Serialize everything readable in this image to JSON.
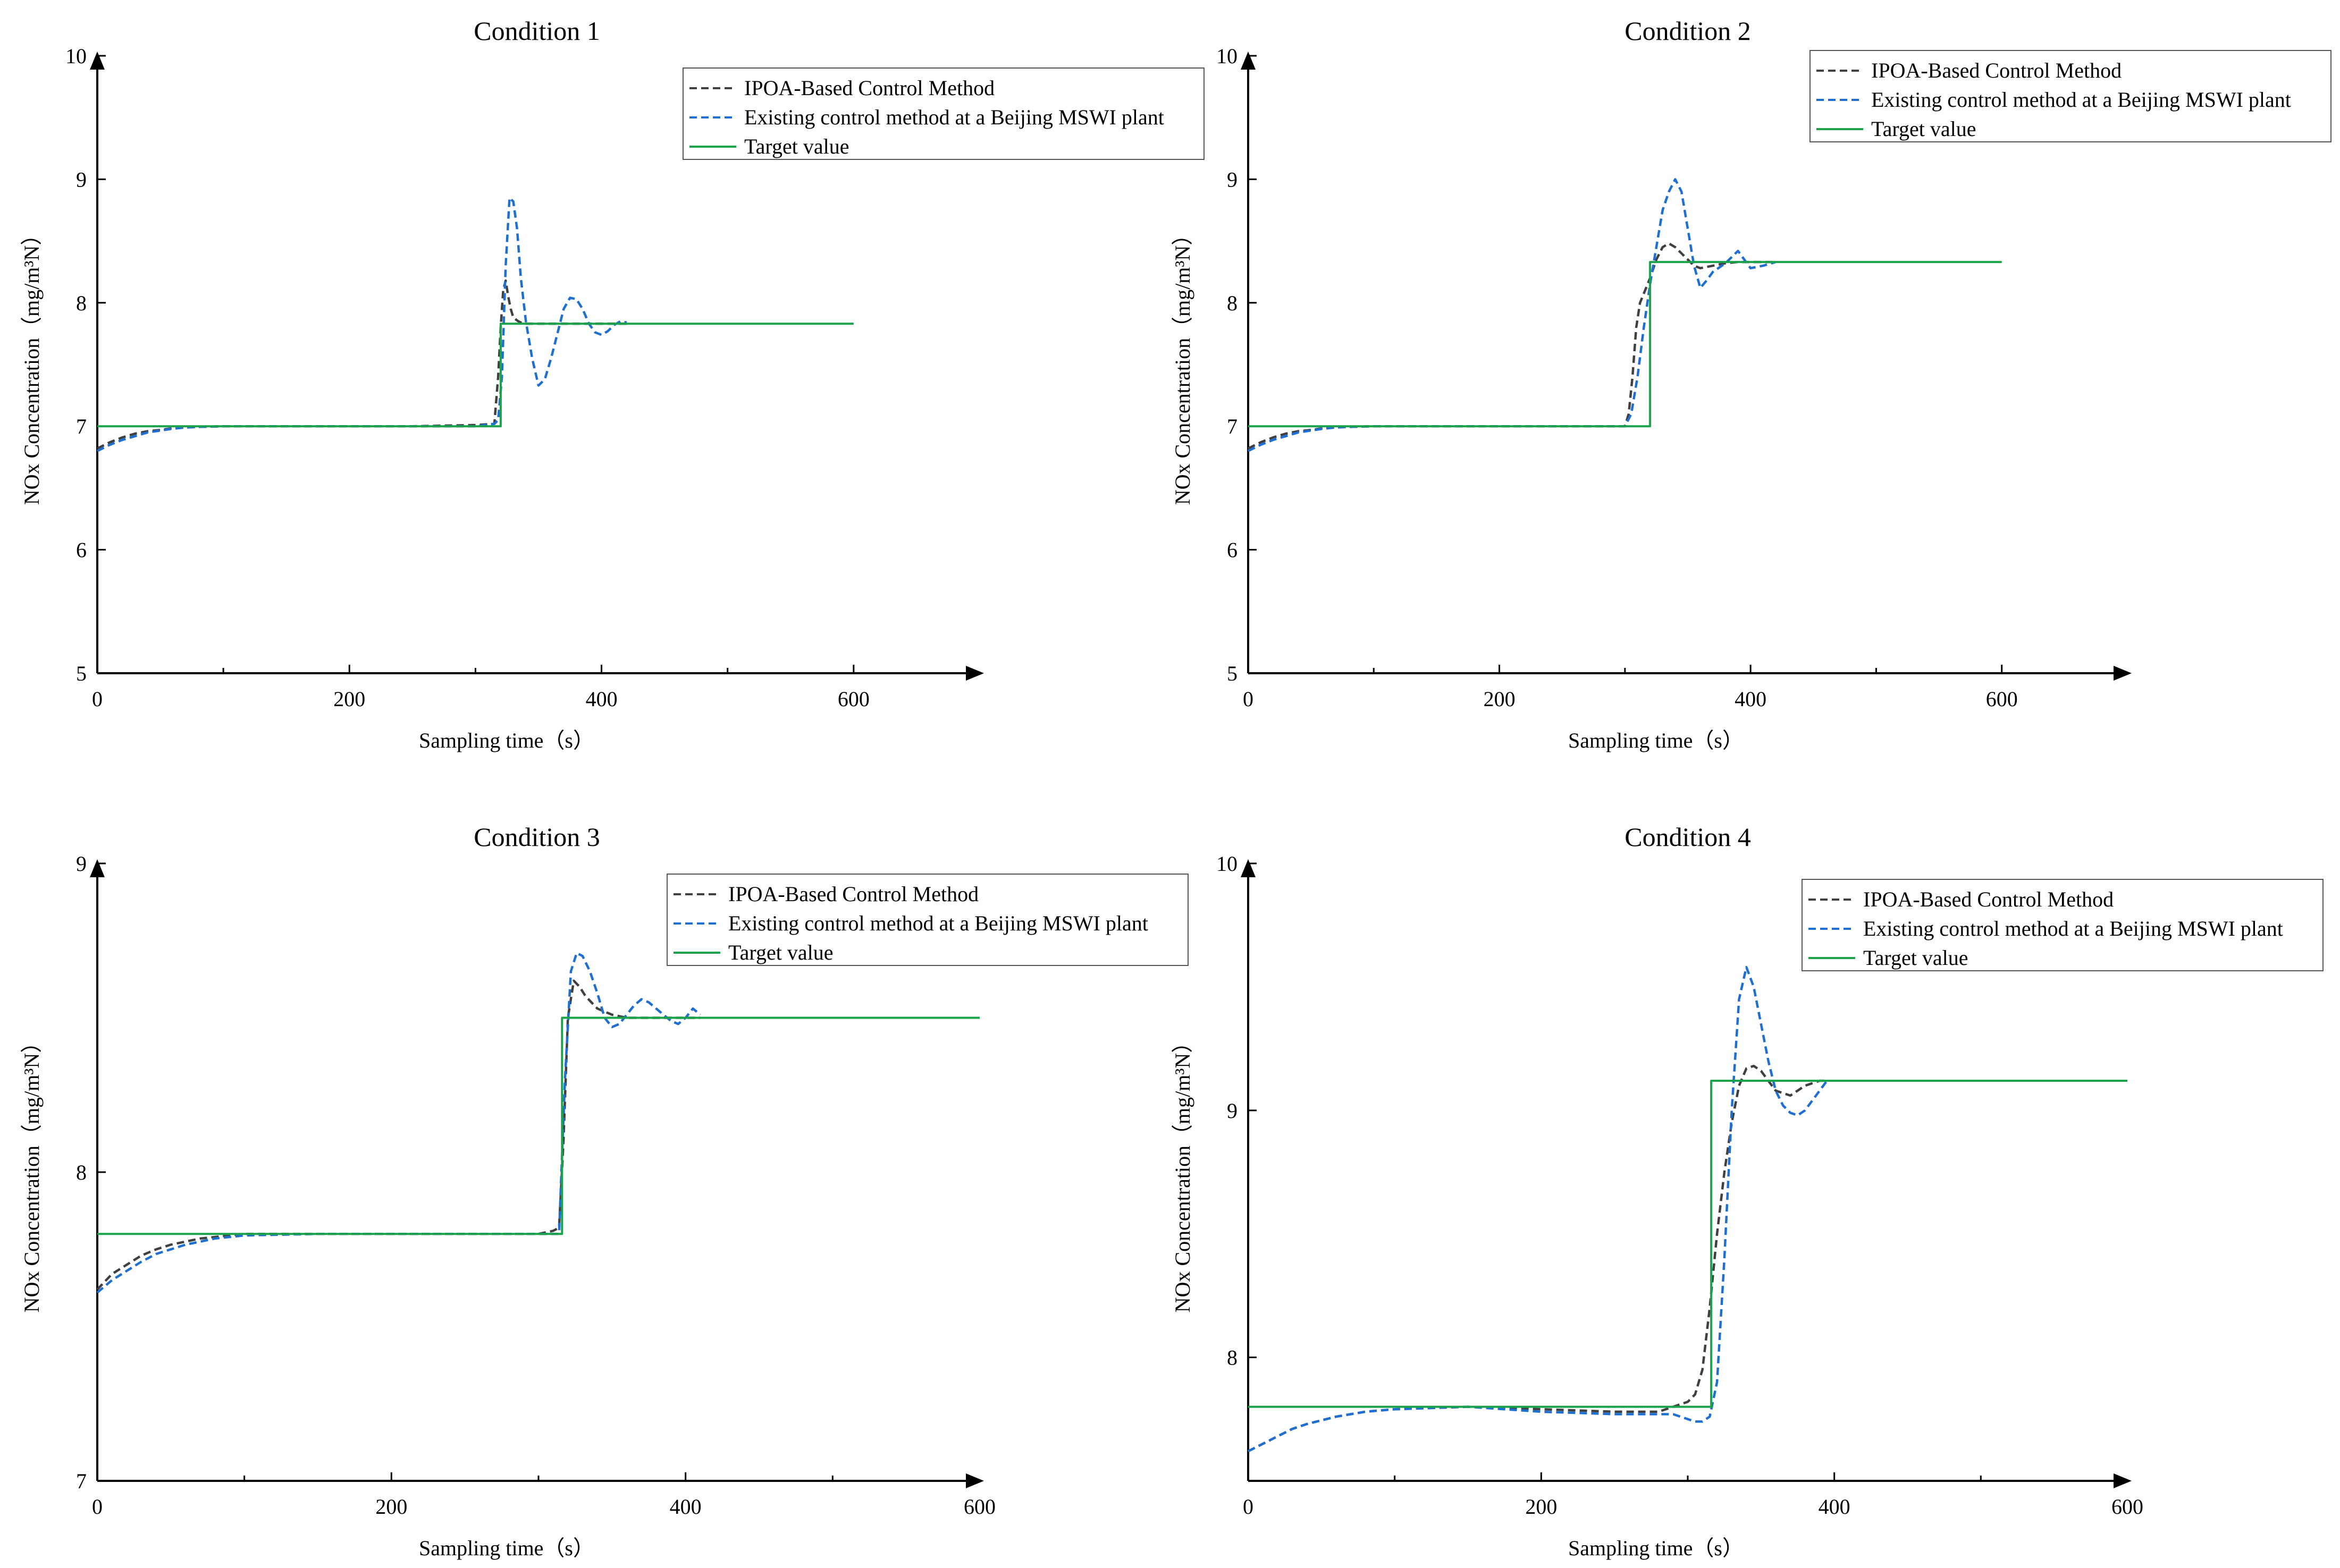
{
  "figure": {
    "legend_labels": [
      "IPOA-Based Control Method",
      "Existing control method at a Beijing MSWI plant",
      "Target value"
    ]
  },
  "chart_data": [
    {
      "type": "line",
      "title": "Condition 1",
      "xlabel": "Sampling time（s）",
      "ylabel": "NOx Concentration（mg/m³N）",
      "xlim": [
        0,
        700
      ],
      "ylim": [
        5,
        10
      ],
      "xticks": [
        0,
        200,
        400,
        600
      ],
      "yticks": [
        5,
        6,
        7,
        8,
        9,
        10
      ],
      "legend_position": "top-right",
      "series": [
        {
          "name": "IPOA-Based Control Method",
          "color": "#404040",
          "dash": "dashed",
          "x": [
            0,
            10,
            20,
            30,
            40,
            50,
            60,
            70,
            80,
            100,
            150,
            200,
            250,
            300,
            315,
            318,
            320,
            322,
            324,
            326,
            328,
            330,
            334,
            338,
            342,
            350,
            360,
            400,
            420
          ],
          "y": [
            6.82,
            6.87,
            6.91,
            6.94,
            6.96,
            6.97,
            6.985,
            6.99,
            6.995,
            7.0,
            7.0,
            7.0,
            7.0,
            7.01,
            7.02,
            7.4,
            7.8,
            8.1,
            8.18,
            8.05,
            7.95,
            7.88,
            7.85,
            7.83,
            7.83,
            7.83,
            7.83,
            7.83,
            7.83
          ]
        },
        {
          "name": "Existing control method at a Beijing MSWI plant",
          "color": "#1f6fd1",
          "dash": "dashed",
          "x": [
            0,
            10,
            20,
            30,
            40,
            50,
            60,
            70,
            80,
            100,
            150,
            200,
            250,
            300,
            315,
            318,
            321,
            324,
            327,
            330,
            333,
            336,
            340,
            345,
            350,
            355,
            360,
            365,
            370,
            375,
            380,
            385,
            390,
            395,
            400,
            405,
            410,
            415,
            420
          ],
          "y": [
            6.8,
            6.85,
            6.89,
            6.92,
            6.95,
            6.965,
            6.98,
            6.99,
            6.995,
            7.0,
            7.0,
            7.0,
            7.0,
            7.0,
            7.02,
            7.05,
            7.4,
            8.3,
            8.85,
            8.82,
            8.6,
            8.2,
            7.85,
            7.55,
            7.33,
            7.38,
            7.55,
            7.75,
            7.95,
            8.04,
            8.03,
            7.95,
            7.83,
            7.76,
            7.74,
            7.77,
            7.82,
            7.85,
            7.84
          ]
        },
        {
          "name": "Target value",
          "color": "#1aa34a",
          "dash": "solid",
          "x": [
            0,
            320,
            320,
            600
          ],
          "y": [
            7.0,
            7.0,
            7.83,
            7.83
          ]
        }
      ]
    },
    {
      "type": "line",
      "title": "Condition 2",
      "xlabel": "Sampling time（s）",
      "ylabel": "NOx Concentration（mg/m³N）",
      "xlim": [
        0,
        700
      ],
      "ylim": [
        5,
        10
      ],
      "xticks": [
        0,
        200,
        400,
        600
      ],
      "yticks": [
        5,
        6,
        7,
        8,
        9,
        10
      ],
      "legend_position": "top-right",
      "series": [
        {
          "name": "IPOA-Based Control Method",
          "color": "#404040",
          "dash": "dashed",
          "x": [
            0,
            10,
            20,
            30,
            40,
            50,
            60,
            70,
            80,
            100,
            150,
            200,
            250,
            300,
            303,
            306,
            309,
            312,
            316,
            320,
            325,
            330,
            335,
            340,
            345,
            350,
            355,
            360,
            370,
            380,
            390,
            400,
            410,
            420
          ],
          "y": [
            6.82,
            6.87,
            6.91,
            6.94,
            6.96,
            6.97,
            6.985,
            6.99,
            6.995,
            7.0,
            7.0,
            7.0,
            7.0,
            7.0,
            7.1,
            7.4,
            7.8,
            8.0,
            8.1,
            8.2,
            8.35,
            8.45,
            8.48,
            8.45,
            8.4,
            8.35,
            8.3,
            8.28,
            8.3,
            8.32,
            8.33,
            8.33,
            8.33,
            8.33
          ]
        },
        {
          "name": "Existing control method at a Beijing MSWI plant",
          "color": "#1f6fd1",
          "dash": "dashed",
          "x": [
            0,
            10,
            20,
            30,
            40,
            50,
            60,
            70,
            80,
            100,
            150,
            200,
            250,
            300,
            305,
            310,
            315,
            320,
            325,
            330,
            335,
            340,
            345,
            350,
            355,
            360,
            365,
            370,
            380,
            390,
            400,
            410,
            420
          ],
          "y": [
            6.8,
            6.85,
            6.89,
            6.92,
            6.95,
            6.965,
            6.98,
            6.99,
            6.995,
            7.0,
            7.0,
            7.0,
            7.0,
            7.0,
            7.1,
            7.4,
            7.8,
            8.15,
            8.45,
            8.75,
            8.9,
            9.0,
            8.9,
            8.6,
            8.3,
            8.12,
            8.18,
            8.25,
            8.32,
            8.42,
            8.28,
            8.3,
            8.33
          ]
        },
        {
          "name": "Target value",
          "color": "#1aa34a",
          "dash": "solid",
          "x": [
            0,
            320,
            320,
            600
          ],
          "y": [
            7.0,
            7.0,
            8.33,
            8.33
          ]
        }
      ]
    },
    {
      "type": "line",
      "title": "Condition 3",
      "xlabel": "Sampling time（s）",
      "ylabel": "NOx Concentration（mg/m³N）",
      "xlim": [
        0,
        600
      ],
      "ylim": [
        7,
        9
      ],
      "xticks": [
        0,
        200,
        400,
        600
      ],
      "yticks": [
        7,
        8,
        9
      ],
      "legend_position": "top-right",
      "series": [
        {
          "name": "IPOA-Based Control Method",
          "color": "#404040",
          "dash": "dashed",
          "x": [
            0,
            10,
            20,
            30,
            40,
            50,
            60,
            70,
            80,
            90,
            100,
            150,
            200,
            250,
            300,
            310,
            314,
            317,
            320,
            324,
            328,
            332,
            336,
            340,
            345,
            350,
            360,
            370,
            380,
            390,
            400,
            410
          ],
          "y": [
            7.62,
            7.67,
            7.7,
            7.73,
            7.75,
            7.765,
            7.775,
            7.785,
            7.79,
            7.795,
            7.8,
            7.8,
            7.8,
            7.8,
            7.8,
            7.81,
            7.82,
            8.1,
            8.5,
            8.62,
            8.6,
            8.57,
            8.55,
            8.53,
            8.52,
            8.51,
            8.5,
            8.5,
            8.5,
            8.5,
            8.5,
            8.5
          ]
        },
        {
          "name": "Existing control method at a Beijing MSWI plant",
          "color": "#1f6fd1",
          "dash": "dashed",
          "x": [
            0,
            10,
            20,
            30,
            40,
            50,
            60,
            70,
            80,
            90,
            100,
            150,
            200,
            250,
            300,
            310,
            314,
            318,
            322,
            326,
            330,
            335,
            340,
            345,
            350,
            355,
            360,
            365,
            370,
            375,
            380,
            385,
            390,
            395,
            400,
            405,
            410
          ],
          "y": [
            7.61,
            7.65,
            7.68,
            7.71,
            7.735,
            7.75,
            7.765,
            7.775,
            7.785,
            7.79,
            7.795,
            7.8,
            7.8,
            7.8,
            7.8,
            7.8,
            7.8,
            8.3,
            8.65,
            8.71,
            8.7,
            8.65,
            8.58,
            8.5,
            8.47,
            8.48,
            8.51,
            8.54,
            8.56,
            8.55,
            8.53,
            8.51,
            8.49,
            8.48,
            8.5,
            8.53,
            8.51
          ]
        },
        {
          "name": "Target value",
          "color": "#1aa34a",
          "dash": "solid",
          "x": [
            0,
            316,
            316,
            600
          ],
          "y": [
            7.8,
            7.8,
            8.5,
            8.5
          ]
        }
      ]
    },
    {
      "type": "line",
      "title": "Condition 4",
      "xlabel": "Sampling time（s）",
      "ylabel": "NOx Concentration（mg/m³N）",
      "xlim": [
        0,
        600
      ],
      "ylim": [
        7.5,
        10
      ],
      "xticks": [
        0,
        200,
        400,
        600
      ],
      "yticks": [
        8,
        9,
        10
      ],
      "legend_position": "top-right",
      "series": [
        {
          "name": "IPOA-Based Control Method",
          "color": "#404040",
          "dash": "dashed",
          "x": [
            0,
            10,
            20,
            30,
            40,
            50,
            60,
            70,
            80,
            90,
            100,
            150,
            200,
            250,
            280,
            290,
            300,
            305,
            310,
            315,
            320,
            325,
            330,
            335,
            340,
            345,
            350,
            355,
            360,
            370,
            380,
            390,
            395
          ],
          "y": [
            7.62,
            7.65,
            7.68,
            7.71,
            7.73,
            7.745,
            7.76,
            7.77,
            7.78,
            7.785,
            7.79,
            7.8,
            7.79,
            7.78,
            7.78,
            7.8,
            7.82,
            7.85,
            7.95,
            8.2,
            8.5,
            8.75,
            8.95,
            9.1,
            9.17,
            9.18,
            9.16,
            9.12,
            9.08,
            9.06,
            9.1,
            9.12,
            9.12
          ]
        },
        {
          "name": "Existing control method at a Beijing MSWI plant",
          "color": "#1f6fd1",
          "dash": "dashed",
          "x": [
            0,
            10,
            20,
            30,
            40,
            50,
            60,
            70,
            80,
            90,
            100,
            150,
            200,
            250,
            280,
            290,
            300,
            305,
            310,
            315,
            320,
            325,
            330,
            335,
            340,
            345,
            350,
            355,
            360,
            365,
            370,
            375,
            380,
            385,
            390,
            395
          ],
          "y": [
            7.62,
            7.65,
            7.68,
            7.71,
            7.73,
            7.745,
            7.76,
            7.77,
            7.78,
            7.785,
            7.79,
            7.8,
            7.78,
            7.77,
            7.77,
            7.77,
            7.75,
            7.74,
            7.74,
            7.76,
            7.9,
            8.4,
            9.0,
            9.45,
            9.58,
            9.5,
            9.35,
            9.2,
            9.08,
            9.02,
            8.99,
            8.98,
            9.0,
            9.04,
            9.08,
            9.12
          ]
        },
        {
          "name": "Target value",
          "color": "#1aa34a",
          "dash": "solid",
          "x": [
            0,
            316,
            316,
            600
          ],
          "y": [
            7.8,
            7.8,
            9.12,
            9.12
          ]
        }
      ]
    }
  ]
}
